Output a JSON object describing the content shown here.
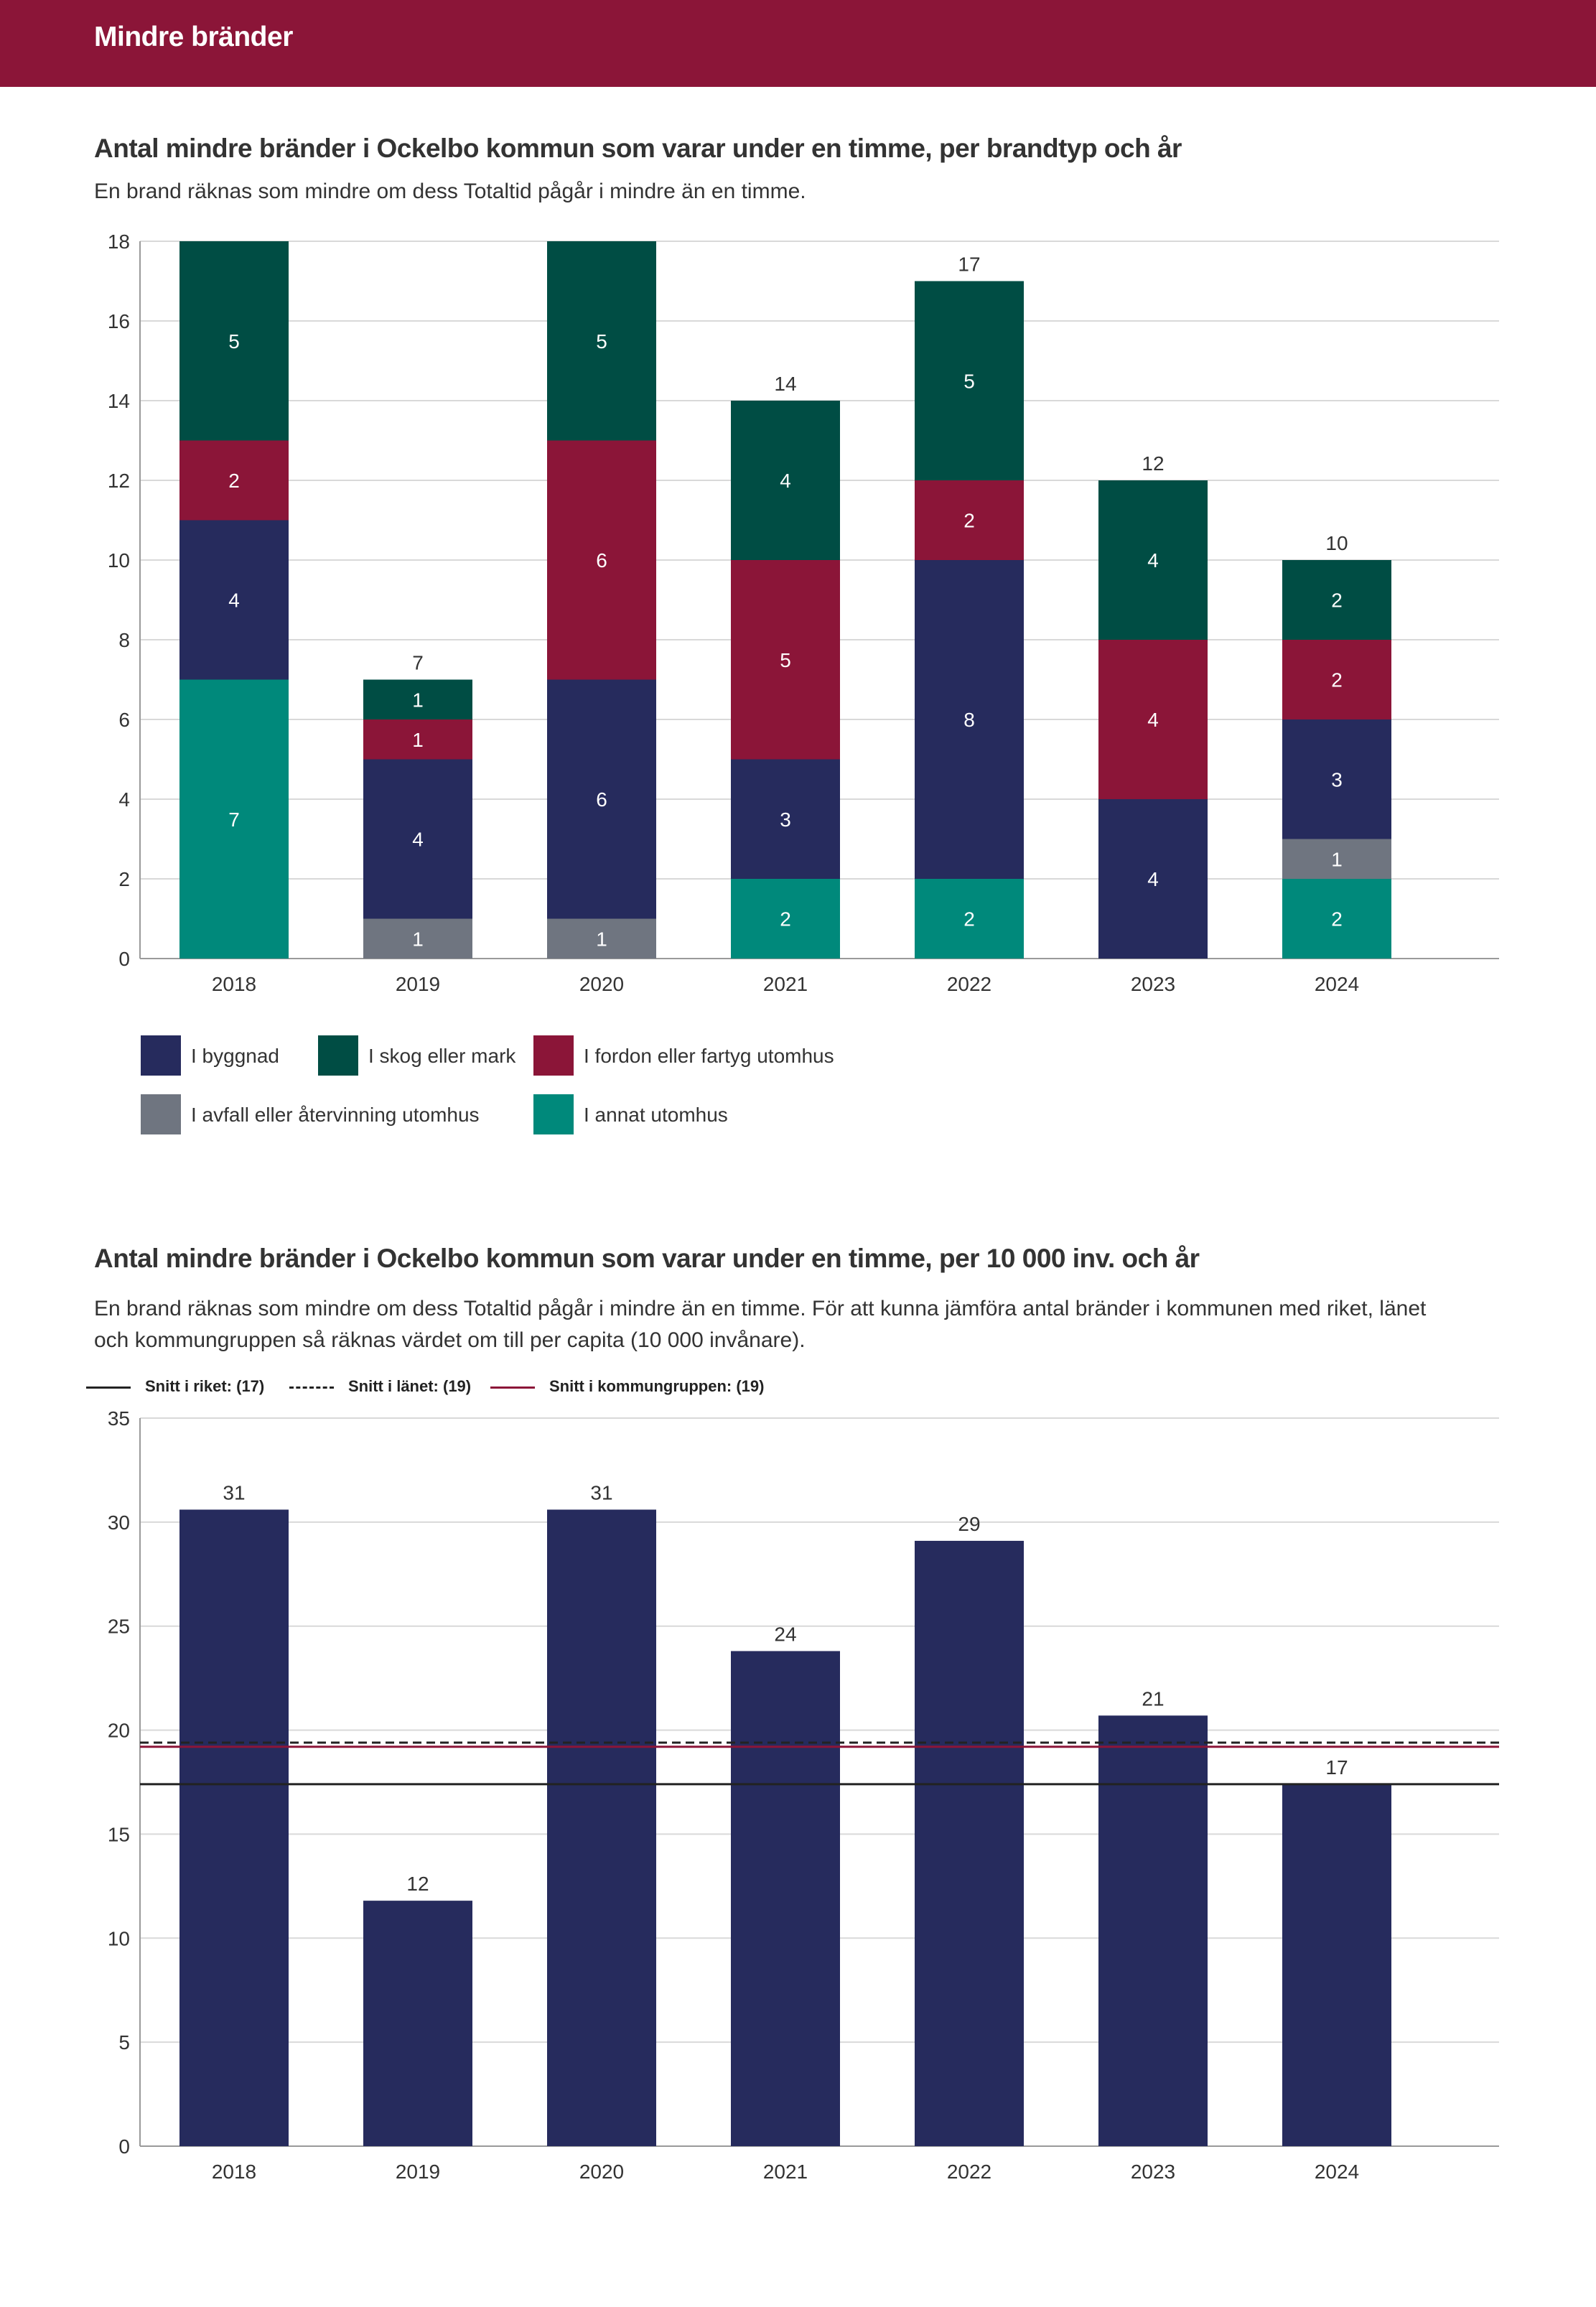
{
  "header": {
    "title": "Mindre bränder"
  },
  "chart1": {
    "title": "Antal mindre bränder i Ockelbo kommun som varar under en timme, per brandtyp och år",
    "subtitle": "En brand räknas som mindre om dess Totaltid pågår i mindre än en timme."
  },
  "chart2": {
    "title": "Antal mindre bränder i Ockelbo kommun som varar under en timme, per 10 000 inv. och år",
    "subtitle_line1": "En brand räknas som mindre om dess Totaltid pågår i mindre än en timme. För att kunna jämföra antal bränder i kommunen med riket, länet",
    "subtitle_line2": "och kommungruppen så räknas värdet om till per capita (10 000 invånare).",
    "ref_legend": [
      {
        "label": "Snitt i riket: (17)",
        "style": "solid",
        "color": "#222222"
      },
      {
        "label": "Snitt i länet: (19)",
        "style": "dashed",
        "color": "#222222"
      },
      {
        "label": "Snitt i kommungruppen: (19)",
        "style": "solid",
        "color": "#8b1538"
      }
    ]
  },
  "colors": {
    "byggnad": "#262b5d",
    "skog": "#004d44",
    "fordon": "#8b1538",
    "avfall": "#6f7580",
    "annat": "#00897b",
    "grid": "#d9d9d9",
    "axis": "#9a9a9a"
  },
  "chart_data": [
    {
      "type": "bar",
      "stacked": true,
      "title": "Antal mindre bränder i Ockelbo kommun som varar under en timme, per brandtyp och år",
      "subtitle": "En brand räknas som mindre om dess Totaltid pågår i mindre än en timme.",
      "categories": [
        "2018",
        "2019",
        "2020",
        "2021",
        "2022",
        "2023",
        "2024"
      ],
      "series": [
        {
          "name": "I annat utomhus",
          "key": "annat",
          "values": [
            7,
            0,
            0,
            2,
            2,
            0,
            2
          ]
        },
        {
          "name": "I avfall eller återvinning utomhus",
          "key": "avfall",
          "values": [
            0,
            1,
            1,
            0,
            0,
            0,
            1
          ]
        },
        {
          "name": "I byggnad",
          "key": "byggnad",
          "values": [
            4,
            4,
            6,
            3,
            8,
            4,
            3
          ]
        },
        {
          "name": "I fordon eller fartyg utomhus",
          "key": "fordon",
          "values": [
            2,
            1,
            6,
            5,
            2,
            4,
            2
          ]
        },
        {
          "name": "I skog eller mark",
          "key": "skog",
          "values": [
            5,
            1,
            5,
            4,
            5,
            4,
            2
          ]
        }
      ],
      "totals": [
        18,
        7,
        18,
        14,
        17,
        12,
        10
      ],
      "show_total_label": [
        false,
        true,
        false,
        true,
        true,
        true,
        true
      ],
      "yticks": [
        0,
        2,
        4,
        6,
        8,
        10,
        12,
        14,
        16,
        18
      ],
      "ylim": [
        0,
        18
      ],
      "grid": true,
      "legend_order": [
        [
          "I byggnad",
          "I skog eller mark",
          "I fordon eller fartyg utomhus"
        ],
        [
          "I avfall eller återvinning utomhus",
          "I annat utomhus"
        ]
      ],
      "legend_position": "bottom"
    },
    {
      "type": "bar",
      "title": "Antal mindre bränder i Ockelbo kommun som varar under en timme, per 10 000 inv. och år",
      "categories": [
        "2018",
        "2019",
        "2020",
        "2021",
        "2022",
        "2023",
        "2024"
      ],
      "values": [
        30.6,
        11.8,
        30.6,
        23.8,
        29.1,
        20.7,
        17.4
      ],
      "labels": [
        "31",
        "12",
        "31",
        "24",
        "29",
        "21",
        "17"
      ],
      "reference_lines": [
        {
          "name": "Snitt i riket",
          "value": 17.4,
          "style": "solid"
        },
        {
          "name": "Snitt i länet",
          "value": 19.4,
          "style": "dashed"
        },
        {
          "name": "Snitt i kommungruppen",
          "value": 19.2,
          "style": "solid"
        }
      ],
      "yticks": [
        0,
        5,
        10,
        15,
        20,
        25,
        30,
        35
      ],
      "ylim": [
        0,
        35
      ],
      "grid": true,
      "legend_position": "top-left"
    }
  ]
}
